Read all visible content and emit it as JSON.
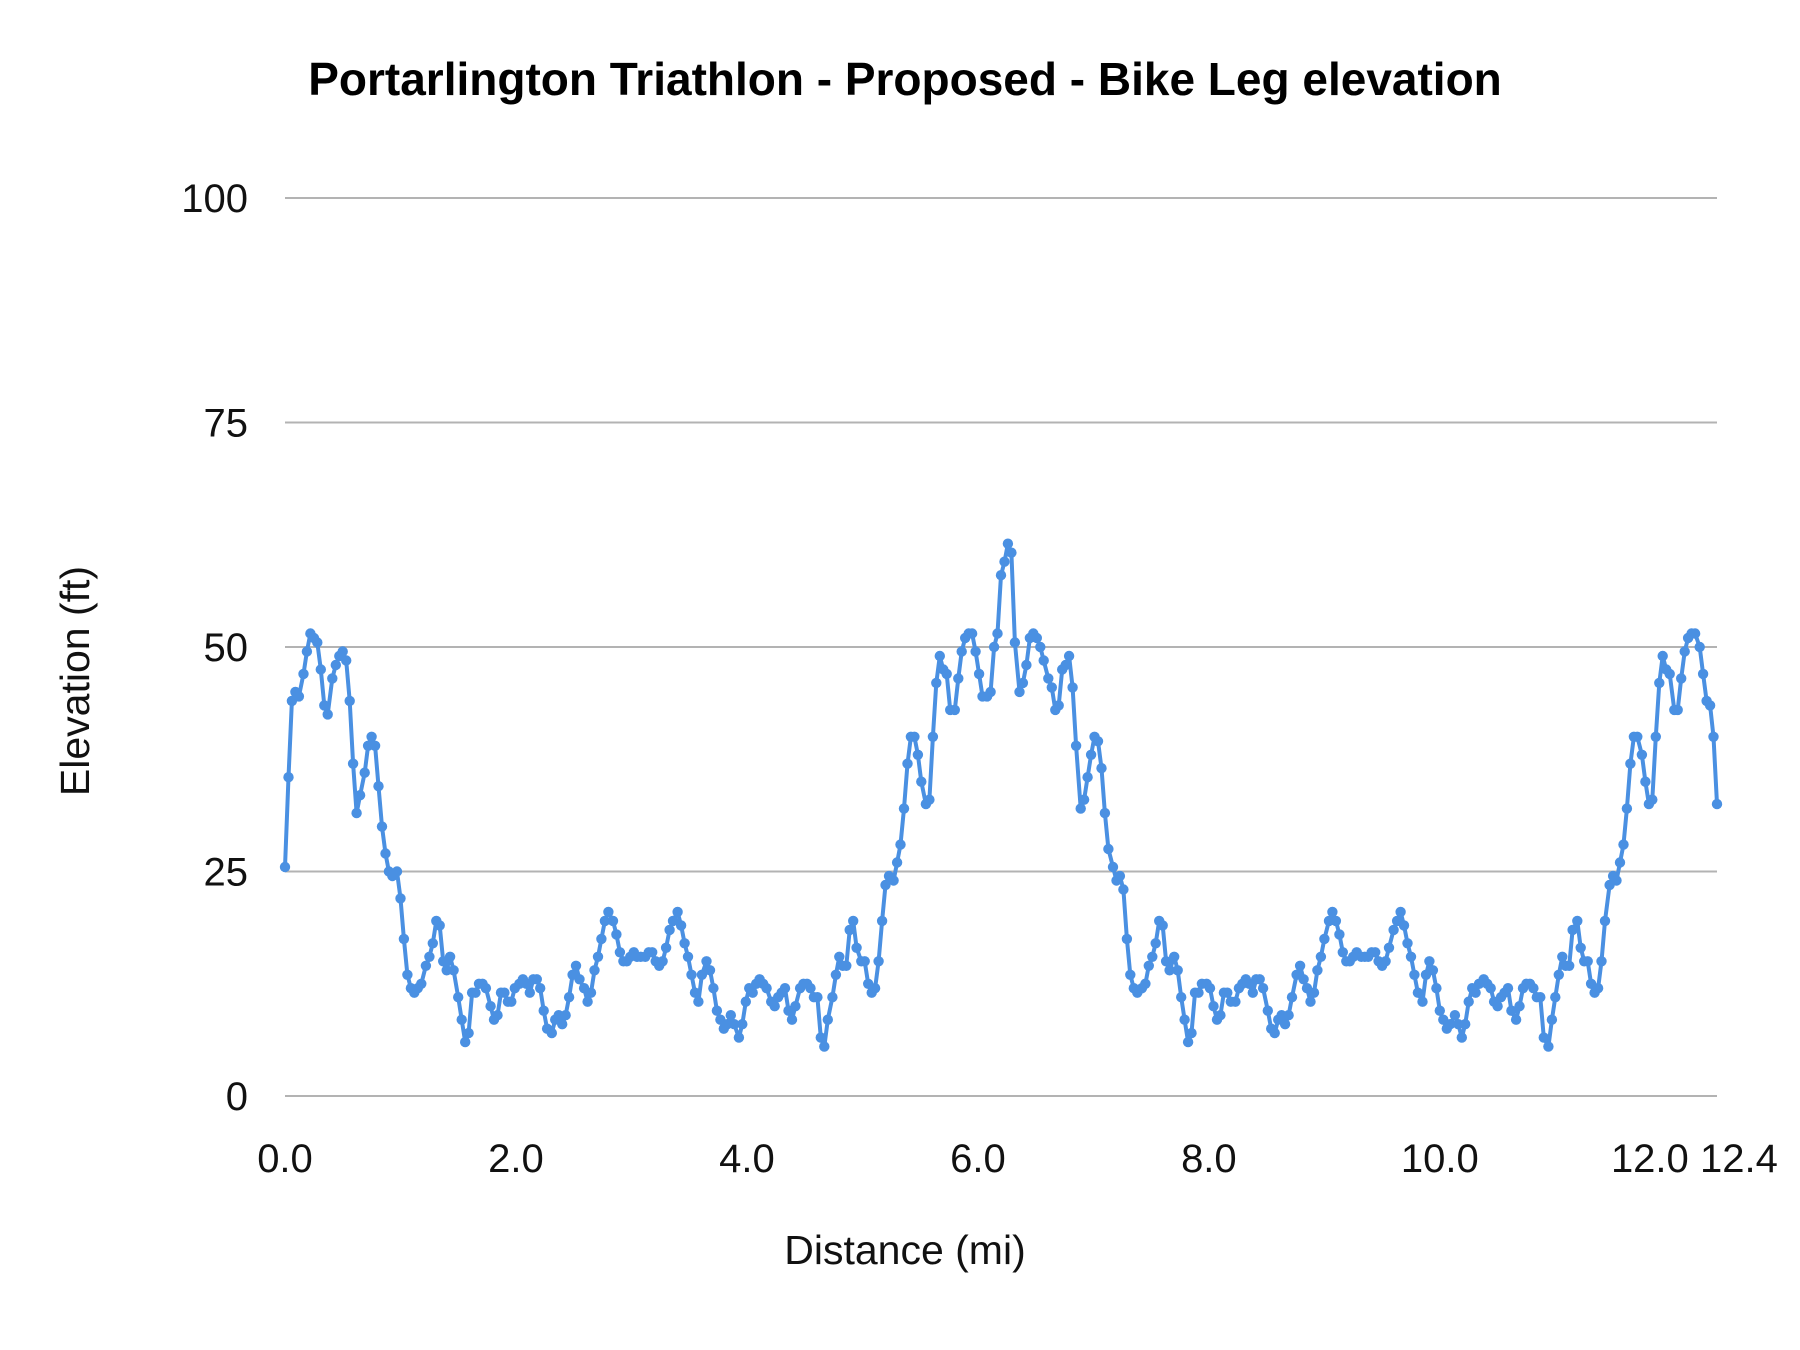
{
  "chart_data": {
    "type": "line",
    "title": "Portarlington Triathlon - Proposed  - Bike Leg elevation",
    "xlabel": "Distance (mi)",
    "ylabel": "Elevation (ft)",
    "xlim": [
      0,
      12.4
    ],
    "ylim": [
      0,
      100
    ],
    "x_ticks": [
      "0.0",
      "2.0",
      "4.0",
      "6.0",
      "8.0",
      "10.0",
      "12.0",
      "12.4"
    ],
    "y_ticks": [
      "0",
      "25",
      "50",
      "75",
      "100"
    ],
    "grid": "horizontal",
    "legend": "none",
    "markers": true,
    "color": "#4a90e2",
    "x": [
      0,
      0.03,
      0.06,
      0.09,
      0.12,
      0.16,
      0.19,
      0.22,
      0.25,
      0.28,
      0.31,
      0.34,
      0.37,
      0.41,
      0.44,
      0.47,
      0.5,
      0.53,
      0.56,
      0.59,
      0.62,
      0.65,
      0.69,
      0.72,
      0.75,
      0.78,
      0.81,
      0.84,
      0.87,
      0.9,
      0.93,
      0.97,
      1.0,
      1.03,
      1.06,
      1.09,
      1.12,
      1.15,
      1.18,
      1.22,
      1.25,
      1.28,
      1.31,
      1.34,
      1.37,
      1.4,
      1.43,
      1.46,
      1.5,
      1.53,
      1.56,
      1.59,
      1.62,
      1.65,
      1.68,
      1.71,
      1.74,
      1.78,
      1.81,
      1.84,
      1.87,
      1.9,
      1.93,
      1.96,
      1.99,
      2.03,
      2.06,
      2.09,
      2.12,
      2.15,
      2.18,
      2.21,
      2.24,
      2.27,
      2.31,
      2.34,
      2.37,
      2.4,
      2.43,
      2.46,
      2.49,
      2.52,
      2.55,
      2.59,
      2.62,
      2.65,
      2.68,
      2.71,
      2.74,
      2.77,
      2.8,
      2.84,
      2.87,
      2.9,
      2.93,
      2.96,
      2.99,
      3.02,
      3.05,
      3.08,
      3.12,
      3.15,
      3.18,
      3.21,
      3.24,
      3.27,
      3.3,
      3.33,
      3.36,
      3.4,
      3.43,
      3.46,
      3.49,
      3.52,
      3.55,
      3.58,
      3.61,
      3.65,
      3.68,
      3.71,
      3.74,
      3.77,
      3.8,
      3.83,
      3.86,
      3.89,
      3.93,
      3.96,
      3.99,
      4.02,
      4.05,
      4.08,
      4.11,
      4.14,
      4.17,
      4.21,
      4.24,
      4.27,
      4.3,
      4.33,
      4.36,
      4.39,
      4.42,
      4.46,
      4.49,
      4.52,
      4.55,
      4.58,
      4.61,
      4.64,
      4.67,
      4.7,
      4.74,
      4.77,
      4.8,
      4.83,
      4.86,
      4.89,
      4.92,
      4.95,
      4.99,
      5.02,
      5.05,
      5.08,
      5.11,
      5.14,
      5.17,
      5.2,
      5.23,
      5.27,
      5.3,
      5.33,
      5.36,
      5.39,
      5.42,
      5.45,
      5.48,
      5.51,
      5.55,
      5.58,
      5.61,
      5.64,
      5.67,
      5.7,
      5.73,
      5.76,
      5.8,
      5.83,
      5.86,
      5.89,
      5.92,
      5.95,
      5.98,
      6.01,
      6.04,
      6.08,
      6.11,
      6.14,
      6.17,
      6.2,
      6.23,
      6.26,
      6.29,
      6.32,
      6.36,
      6.39,
      6.42,
      6.45,
      6.48,
      6.51,
      6.54,
      6.57,
      6.61,
      6.64,
      6.67,
      6.7,
      6.73,
      6.76,
      6.79,
      6.82,
      6.85,
      6.89,
      6.92,
      6.95,
      6.98,
      7.01,
      7.04,
      7.07,
      7.1,
      7.13,
      7.17,
      7.2,
      7.23,
      7.26,
      7.29,
      7.32,
      7.35,
      7.38,
      7.42,
      7.45,
      7.48,
      7.51,
      7.54,
      7.57,
      7.6,
      7.63,
      7.66,
      7.7,
      7.73,
      7.76,
      7.79,
      7.82,
      7.85,
      7.88,
      7.91,
      7.94,
      7.98,
      8.01,
      8.04,
      8.07,
      8.1,
      8.13,
      8.16,
      8.19,
      8.23,
      8.26,
      8.29,
      8.32,
      8.35,
      8.38,
      8.41,
      8.44,
      8.47,
      8.51,
      8.54,
      8.57,
      8.6,
      8.63,
      8.66,
      8.69,
      8.72,
      8.76,
      8.79,
      8.82,
      8.85,
      8.88,
      8.91,
      8.94,
      8.97,
      9.0,
      9.04,
      9.07,
      9.1,
      9.13,
      9.16,
      9.19,
      9.22,
      9.25,
      9.28,
      9.32,
      9.35,
      9.38,
      9.41,
      9.44,
      9.47,
      9.5,
      9.53,
      9.56,
      9.6,
      9.63,
      9.66,
      9.69,
      9.72,
      9.75,
      9.78,
      9.81,
      9.85,
      9.88,
      9.91,
      9.94,
      9.97,
      10.0,
      10.03,
      10.06,
      10.09,
      10.13,
      10.16,
      10.19,
      10.22,
      10.25,
      10.28,
      10.31,
      10.34,
      10.38,
      10.41,
      10.44,
      10.47,
      10.5,
      10.53,
      10.56,
      10.59,
      10.62,
      10.66,
      10.69,
      10.72,
      10.75,
      10.78,
      10.81,
      10.84,
      10.87,
      10.9,
      10.94,
      10.97,
      11.0,
      11.03,
      11.06,
      11.09,
      11.12,
      11.15,
      11.19,
      11.22,
      11.25,
      11.28,
      11.31,
      11.34,
      11.37,
      11.4,
      11.43,
      11.47,
      11.5,
      11.53,
      11.56,
      11.59,
      11.62,
      11.65,
      11.68,
      11.71,
      11.75,
      11.78,
      11.81,
      11.84,
      11.87,
      11.9,
      11.93,
      11.96,
      11.99,
      12.03,
      12.06,
      12.09,
      12.12,
      12.15,
      12.18,
      12.21,
      12.25,
      12.28,
      12.31,
      12.34,
      12.37,
      12.4
    ],
    "y": [
      25.5,
      35.5,
      44,
      45,
      44.5,
      47,
      49.5,
      51.5,
      51,
      50.5,
      47.5,
      43.5,
      42.5,
      46.5,
      48,
      49,
      49.5,
      48.5,
      44,
      37,
      31.5,
      33.5,
      36,
      39,
      40,
      39,
      34.5,
      30,
      27,
      25,
      24.5,
      25,
      22,
      17.5,
      13.5,
      12,
      11.5,
      12,
      12.5,
      14.5,
      15.5,
      17,
      19.5,
      19,
      15,
      14,
      15.5,
      14,
      11,
      8.5,
      6,
      7,
      11.5,
      11.5,
      12.5,
      12.5,
      12,
      10,
      8.5,
      9,
      11.5,
      11.5,
      10.5,
      10.5,
      12,
      12.5,
      13,
      12.5,
      11.5,
      13,
      13,
      12,
      9.5,
      7.5,
      7,
      8.5,
      9,
      8,
      9,
      11,
      13.5,
      14.5,
      13,
      12,
      10.5,
      11.5,
      14,
      15.5,
      17.5,
      19.5,
      20.5,
      19.5,
      18,
      16,
      15,
      15,
      15.5,
      16,
      15.5,
      15.5,
      15.5,
      16,
      16,
      15,
      14.5,
      15,
      16.5,
      18.5,
      19.5,
      20.5,
      19,
      17,
      15.5,
      13.5,
      11.5,
      10.5,
      13.5,
      15,
      14,
      12,
      9.5,
      8.5,
      7.5,
      8,
      9,
      8,
      6.5,
      8,
      10.5,
      12,
      11.5,
      12.5,
      13,
      12.5,
      12,
      10.5,
      10,
      11,
      11.5,
      12,
      9.5,
      8.5,
      10,
      12,
      12.5,
      12.5,
      12,
      11,
      11,
      6.5,
      5.5,
      8.5,
      11,
      13.5,
      15.5,
      14.5,
      14.5,
      18.5,
      19.5,
      16.5,
      15,
      15,
      12.5,
      11.5,
      12,
      15,
      19.5,
      23.5,
      24.5,
      24,
      26,
      28,
      32,
      37,
      40,
      40,
      38,
      35,
      32.5,
      33,
      40,
      46,
      49,
      47.5,
      47,
      43,
      43,
      46.5,
      49.5,
      51,
      51.5,
      51.5,
      49.5,
      47,
      44.5,
      44.5,
      45,
      50,
      51.5,
      58,
      59.5,
      61.5,
      60.5,
      50.5,
      45,
      46,
      48,
      51,
      51.5,
      51,
      50,
      48.5,
      46.5,
      45.5,
      43,
      43.5,
      47.5,
      48,
      49,
      45.5,
      39,
      32,
      33,
      35.5,
      38,
      40,
      39.5,
      36.5,
      31.5,
      27.5,
      25.5,
      24,
      24.5,
      23,
      17.5,
      13.5,
      12,
      11.5,
      12,
      12.5,
      14.5,
      15.5,
      17,
      19.5,
      19,
      15,
      14,
      15.5,
      14,
      11,
      8.5,
      6,
      7,
      11.5,
      11.5,
      12.5,
      12.5,
      12,
      10,
      8.5,
      9,
      11.5,
      11.5,
      10.5,
      10.5,
      12,
      12.5,
      13,
      12.5,
      11.5,
      13,
      13,
      12,
      9.5,
      7.5,
      7,
      8.5,
      9,
      8,
      9,
      11,
      13.5,
      14.5,
      13,
      12,
      10.5,
      11.5,
      14,
      15.5,
      17.5,
      19.5,
      20.5,
      19.5,
      18,
      16,
      15,
      15,
      15.5,
      16,
      15.5,
      15.5,
      15.5,
      16,
      16,
      15,
      14.5,
      15,
      16.5,
      18.5,
      19.5,
      20.5,
      19,
      17,
      15.5,
      13.5,
      11.5,
      10.5,
      13.5,
      15,
      14,
      12,
      9.5,
      8.5,
      7.5,
      8,
      9,
      8,
      6.5,
      8,
      10.5,
      12,
      11.5,
      12.5,
      13,
      12.5,
      12,
      10.5,
      10,
      11,
      11.5,
      12,
      9.5,
      8.5,
      10,
      12,
      12.5,
      12.5,
      12,
      11,
      11,
      6.5,
      5.5,
      8.5,
      11,
      13.5,
      15.5,
      14.5,
      14.5,
      18.5,
      19.5,
      16.5,
      15,
      15,
      12.5,
      11.5,
      12,
      15,
      19.5,
      23.5,
      24.5,
      24,
      26,
      28,
      32,
      37,
      40,
      40,
      38,
      35,
      32.5,
      33,
      40,
      46,
      49,
      47.5,
      47,
      43,
      43,
      46.5,
      49.5,
      51,
      51.5,
      51.5,
      50,
      47,
      44,
      43.5,
      40,
      32.5
    ]
  }
}
